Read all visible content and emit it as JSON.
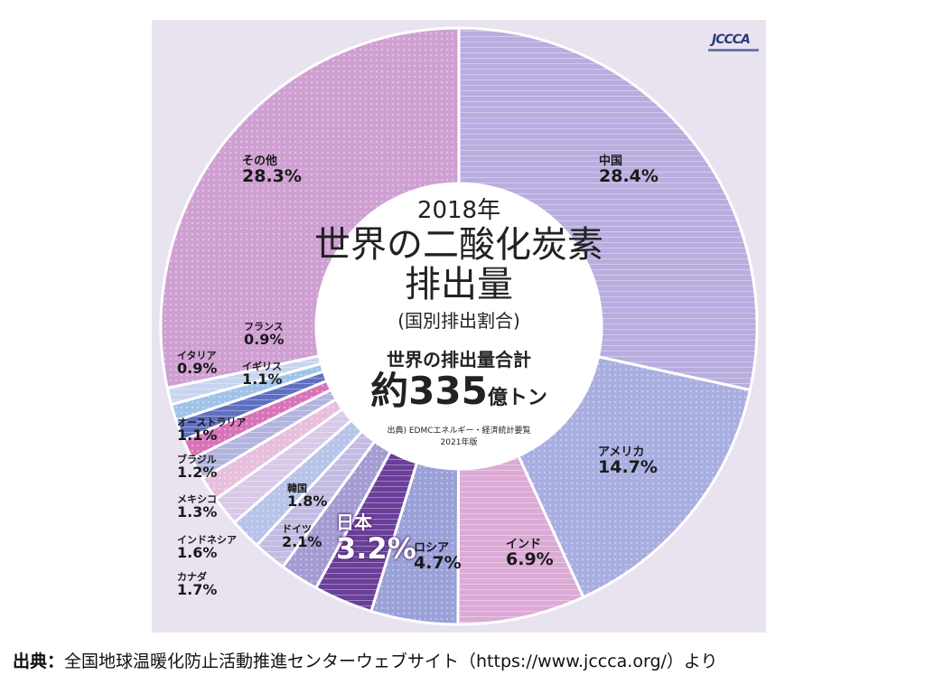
{
  "chart_data": {
    "type": "pie",
    "variant": "donut",
    "title": "世界の二酸化炭素排出量",
    "year": "2018年",
    "subtitle": "(国別排出割合)",
    "total_label": "世界の排出量合計",
    "total_prefix": "約",
    "total_value": "335",
    "total_unit": "億トン",
    "source_note": "出典) EDMCエネルギー・経済統計要覧",
    "edition": "2021年版",
    "categories": [
      "中国",
      "アメリカ",
      "インド",
      "ロシア",
      "日本",
      "ドイツ",
      "韓国",
      "カナダ",
      "インドネシア",
      "メキシコ",
      "ブラジル",
      "オーストラリア",
      "イギリス",
      "イタリア",
      "フランス",
      "その他"
    ],
    "values": [
      28.4,
      14.7,
      6.9,
      4.7,
      3.2,
      2.1,
      1.8,
      1.7,
      1.6,
      1.3,
      1.2,
      1.1,
      1.1,
      0.9,
      0.9,
      28.3
    ],
    "value_labels": [
      "28.4%",
      "14.7%",
      "6.9%",
      "4.7%",
      "3.2%",
      "2.1%",
      "1.8%",
      "1.7%",
      "1.6%",
      "1.3%",
      "1.2%",
      "1.1%",
      "1.1%",
      "0.9%",
      "0.9%",
      "28.3%"
    ],
    "colors": [
      "#b9addf",
      "#a8aee0",
      "#dcaad6",
      "#9aa0d8",
      "#6a3f9a",
      "#a39bd2",
      "#c3bce2",
      "#b7c3e8",
      "#d9c9e8",
      "#e7bfdc",
      "#b3b4de",
      "#d873b8",
      "#5f6fc0",
      "#9fc3e8",
      "#c9d4ef",
      "#cf9fd2"
    ]
  },
  "footer": {
    "label": "出典：",
    "text": "全国地球温暖化防止活動推進センターウェブサイト（https://www.jccca.org/）より"
  },
  "logo": {
    "text": "JCCCA"
  }
}
